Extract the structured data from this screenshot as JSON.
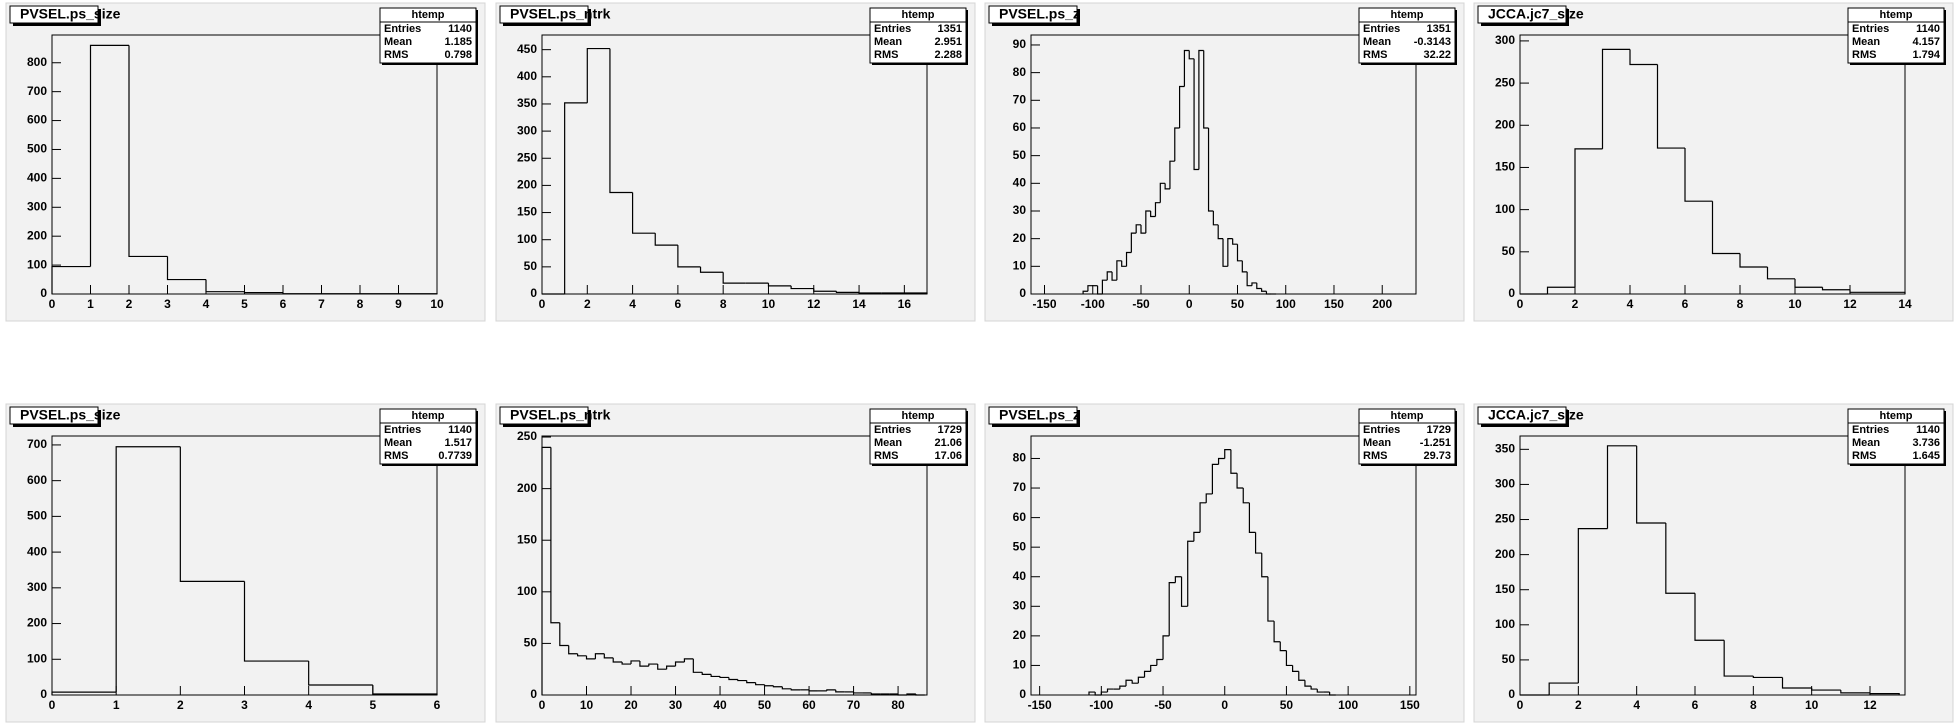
{
  "chart_data": [
    {
      "type": "histogram",
      "title": "PVSEL.ps_size",
      "color": "#000000",
      "bins": [
        0,
        1,
        2,
        3,
        4,
        5,
        6,
        7,
        8,
        9,
        10
      ],
      "counts": [
        95,
        860,
        130,
        50,
        8,
        5,
        1,
        1,
        1,
        1
      ],
      "xlim": [
        0,
        10
      ],
      "ylim": [
        0,
        896
      ],
      "xticks": [
        0,
        1,
        2,
        3,
        4,
        5,
        6,
        7,
        8,
        9,
        10
      ],
      "yticks": [
        0,
        100,
        200,
        300,
        400,
        500,
        600,
        700,
        800
      ],
      "stats": {
        "title": "htemp",
        "rows": [
          {
            "label": "Entries",
            "value": 1140
          },
          {
            "label": "Mean",
            "value": 1.185
          },
          {
            "label": "RMS",
            "value": 0.798
          }
        ]
      }
    },
    {
      "type": "histogram",
      "title": "PVSEL.ps_ntrk",
      "color": "#000000",
      "bins": [
        0,
        1,
        2,
        3,
        4,
        5,
        6,
        7,
        8,
        9,
        10,
        11,
        12,
        13,
        14,
        15,
        16,
        17
      ],
      "counts": [
        0,
        352,
        452,
        187,
        112,
        90,
        50,
        40,
        20,
        20,
        15,
        10,
        5,
        3,
        2,
        2,
        2
      ],
      "xlim": [
        0,
        17
      ],
      "ylim": [
        0,
        477
      ],
      "xticks": [
        0,
        2,
        4,
        6,
        8,
        10,
        12,
        14,
        16
      ],
      "yticks": [
        0,
        50,
        100,
        150,
        200,
        250,
        300,
        350,
        400,
        450
      ],
      "stats": {
        "title": "htemp",
        "rows": [
          {
            "label": "Entries",
            "value": 1351
          },
          {
            "label": "Mean",
            "value": 2.951
          },
          {
            "label": "RMS",
            "value": 2.288
          }
        ]
      }
    },
    {
      "type": "histogram",
      "title": "PVSEL.ps_z",
      "color": "#000000",
      "bins": [
        -110,
        -105,
        -100,
        -95,
        -90,
        -85,
        -80,
        -75,
        -70,
        -65,
        -60,
        -55,
        -50,
        -45,
        -40,
        -35,
        -30,
        -25,
        -20,
        -15,
        -10,
        -5,
        0,
        5,
        10,
        15,
        20,
        25,
        30,
        35,
        40,
        45,
        50,
        55,
        60,
        65,
        70,
        75,
        80,
        85,
        90
      ],
      "counts": [
        1,
        3,
        3,
        0,
        5,
        8,
        5,
        12,
        10,
        15,
        22,
        25,
        22,
        30,
        28,
        33,
        40,
        38,
        48,
        60,
        75,
        88,
        85,
        45,
        88,
        60,
        30,
        25,
        20,
        10,
        20,
        18,
        12,
        8,
        3,
        4,
        2,
        1,
        0,
        0
      ],
      "xlim": [
        -164,
        235
      ],
      "ylim": [
        0,
        93.6
      ],
      "xticks": [
        -150,
        -100,
        -50,
        0,
        50,
        100,
        150,
        200
      ],
      "yticks": [
        0,
        10,
        20,
        30,
        40,
        50,
        60,
        70,
        80,
        90
      ],
      "stats": {
        "title": "htemp",
        "rows": [
          {
            "label": "Entries",
            "value": 1351
          },
          {
            "label": "Mean",
            "value": -0.3143
          },
          {
            "label": "RMS",
            "value": 32.22
          }
        ]
      }
    },
    {
      "type": "histogram",
      "title": "JCCA.jc7_size",
      "color": "#000000",
      "bins": [
        0,
        1,
        2,
        3,
        4,
        5,
        6,
        7,
        8,
        9,
        10,
        11,
        12,
        13,
        14
      ],
      "counts": [
        0,
        8,
        172,
        290,
        272,
        173,
        110,
        48,
        32,
        18,
        8,
        5,
        2,
        2
      ],
      "xlim": [
        0,
        14
      ],
      "ylim": [
        0,
        307
      ],
      "xticks": [
        0,
        2,
        4,
        6,
        8,
        10,
        12,
        14
      ],
      "yticks": [
        0,
        50,
        100,
        150,
        200,
        250,
        300
      ],
      "stats": {
        "title": "htemp",
        "rows": [
          {
            "label": "Entries",
            "value": 1140
          },
          {
            "label": "Mean",
            "value": 4.157
          },
          {
            "label": "RMS",
            "value": 1.794
          }
        ]
      }
    },
    {
      "type": "histogram",
      "title": "PVSEL.ps_size",
      "color": "#000000",
      "bins": [
        0,
        1,
        2,
        3,
        4,
        5,
        6
      ],
      "counts": [
        8,
        695,
        318,
        95,
        28,
        3
      ],
      "xlim": [
        0,
        6
      ],
      "ylim": [
        0,
        725
      ],
      "xticks": [
        0,
        1,
        2,
        3,
        4,
        5,
        6
      ],
      "yticks": [
        0,
        100,
        200,
        300,
        400,
        500,
        600,
        700
      ],
      "stats": {
        "title": "htemp",
        "rows": [
          {
            "label": "Entries",
            "value": 1140
          },
          {
            "label": "Mean",
            "value": 1.517
          },
          {
            "label": "RMS",
            "value": 0.7739
          }
        ]
      }
    },
    {
      "type": "histogram",
      "title": "PVSEL.ps_ntrk",
      "color": "#000000",
      "bins": [
        0,
        2,
        4,
        6,
        8,
        10,
        12,
        14,
        16,
        18,
        20,
        22,
        24,
        26,
        28,
        30,
        32,
        34,
        36,
        38,
        40,
        42,
        44,
        46,
        48,
        50,
        52,
        54,
        56,
        58,
        60,
        62,
        64,
        66,
        68,
        70,
        72,
        74,
        76,
        78,
        80,
        82,
        84,
        86
      ],
      "counts": [
        240,
        70,
        48,
        40,
        38,
        35,
        40,
        36,
        32,
        30,
        33,
        28,
        30,
        25,
        28,
        32,
        35,
        22,
        20,
        18,
        17,
        15,
        14,
        12,
        10,
        9,
        8,
        6,
        5,
        5,
        4,
        4,
        5,
        3,
        3,
        2,
        2,
        1,
        1,
        1,
        0,
        1,
        0
      ],
      "xlim": [
        0,
        86.5
      ],
      "ylim": [
        0,
        251
      ],
      "xticks": [
        0,
        10,
        20,
        30,
        40,
        50,
        60,
        70,
        80
      ],
      "yticks": [
        0,
        50,
        100,
        150,
        200,
        250
      ],
      "stats": {
        "title": "htemp",
        "rows": [
          {
            "label": "Entries",
            "value": 1729
          },
          {
            "label": "Mean",
            "value": 21.06
          },
          {
            "label": "RMS",
            "value": 17.06
          }
        ]
      }
    },
    {
      "type": "histogram",
      "title": "PVSEL.ps_z",
      "color": "#000000",
      "bins": [
        -110,
        -105,
        -100,
        -95,
        -90,
        -85,
        -80,
        -75,
        -70,
        -65,
        -60,
        -55,
        -50,
        -45,
        -40,
        -35,
        -30,
        -25,
        -20,
        -15,
        -10,
        -5,
        0,
        5,
        10,
        15,
        20,
        25,
        30,
        35,
        40,
        45,
        50,
        55,
        60,
        65,
        70,
        75,
        80,
        85,
        90
      ],
      "counts": [
        1,
        0,
        1,
        2,
        2,
        3,
        5,
        4,
        6,
        8,
        10,
        12,
        20,
        38,
        40,
        30,
        52,
        55,
        65,
        68,
        78,
        80,
        83,
        75,
        70,
        65,
        55,
        48,
        40,
        25,
        18,
        15,
        10,
        8,
        5,
        3,
        2,
        1,
        1,
        0
      ],
      "xlim": [
        -157,
        155
      ],
      "ylim": [
        0,
        87.6
      ],
      "xticks": [
        -150,
        -100,
        -50,
        0,
        50,
        100,
        150
      ],
      "yticks": [
        0,
        10,
        20,
        30,
        40,
        50,
        60,
        70,
        80
      ],
      "stats": {
        "title": "htemp",
        "rows": [
          {
            "label": "Entries",
            "value": 1729
          },
          {
            "label": "Mean",
            "value": -1.251
          },
          {
            "label": "RMS",
            "value": 29.73
          }
        ]
      }
    },
    {
      "type": "histogram",
      "title": "JCCA.jc7_size",
      "color": "#000000",
      "bins": [
        0,
        1,
        2,
        3,
        4,
        5,
        6,
        7,
        8,
        9,
        10,
        11,
        12,
        13
      ],
      "counts": [
        0,
        17,
        237,
        355,
        245,
        145,
        78,
        27,
        25,
        10,
        7,
        3,
        2
      ],
      "xlim": [
        0,
        13.2
      ],
      "ylim": [
        0,
        369
      ],
      "xticks": [
        0,
        2,
        4,
        6,
        8,
        10,
        12
      ],
      "yticks": [
        0,
        50,
        100,
        150,
        200,
        250,
        300,
        350
      ],
      "stats": {
        "title": "htemp",
        "rows": [
          {
            "label": "Entries",
            "value": 1140
          },
          {
            "label": "Mean",
            "value": 3.736
          },
          {
            "label": "RMS",
            "value": 1.645
          }
        ]
      }
    }
  ]
}
